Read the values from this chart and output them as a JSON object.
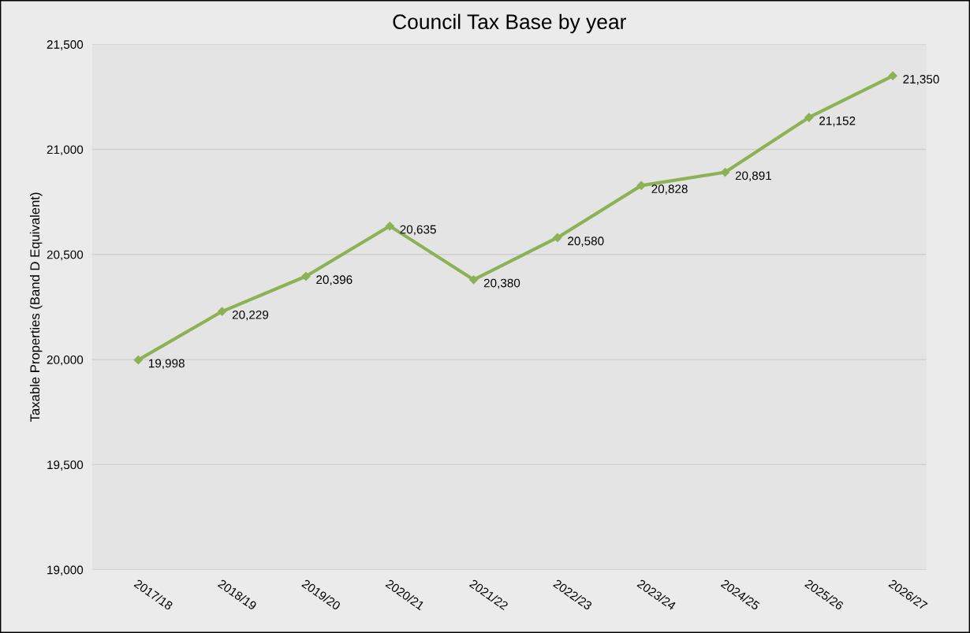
{
  "chart_data": {
    "type": "line",
    "title": "Council Tax Base by year",
    "ylabel": "Taxable Properties (Band D Equivalent)",
    "categories": [
      "2017/18",
      "2018/19",
      "2019/20",
      "2020/21",
      "2021/22",
      "2022/23",
      "2023/24",
      "2024/25",
      "2025/26",
      "2026/27"
    ],
    "series": [
      {
        "color": "#8db255",
        "values": [
          19998,
          20229,
          20396,
          20635,
          20380,
          20580,
          20828,
          20891,
          21152,
          21350
        ],
        "value_labels": [
          "19,998",
          "20,229",
          "20,396",
          "20,635",
          "20,380",
          "20,580",
          "20,828",
          "20,891",
          "21,152",
          "21,350"
        ]
      }
    ],
    "ylim": [
      19000,
      21500
    ],
    "yticks": [
      {
        "value": 19000,
        "label": "19,000"
      },
      {
        "value": 19500,
        "label": "19,500"
      },
      {
        "value": 20000,
        "label": "20,000"
      },
      {
        "value": 20500,
        "label": "20,500"
      },
      {
        "value": 21000,
        "label": "21,000"
      },
      {
        "value": 21500,
        "label": "21,500"
      }
    ],
    "grid": "y",
    "marker": "diamond",
    "line_style": "solid"
  }
}
